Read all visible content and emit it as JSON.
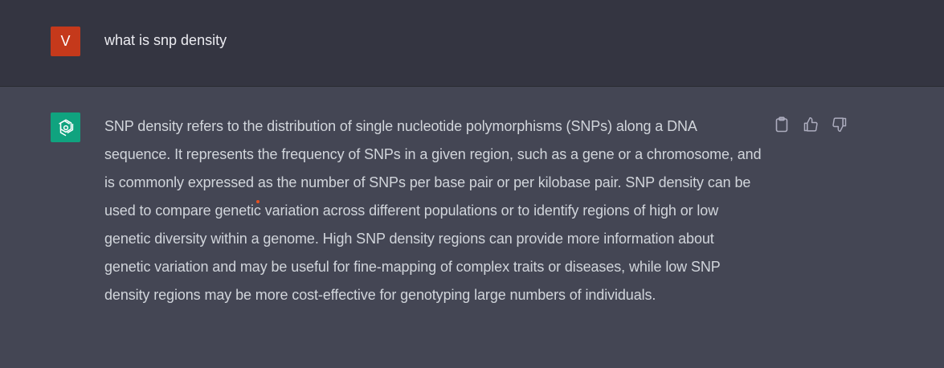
{
  "conversation": {
    "user": {
      "avatar_letter": "V",
      "avatar_color": "#c5391b",
      "message": "what is snp density"
    },
    "assistant": {
      "avatar_icon": "openai-logo-icon",
      "avatar_color": "#10a37f",
      "message": "SNP density refers to the distribution of single nucleotide polymorphisms (SNPs) along a DNA sequence. It represents the frequency of SNPs in a given region, such as a gene or a chromosome, and is commonly expressed as the number of SNPs per base pair or per kilobase pair. SNP density can be used to compare genetic variation across different populations or to identify regions of high or low genetic diversity within a genome. High SNP density regions can provide more information about genetic variation and may be useful for fine-mapping of complex traits or diseases, while low SNP density regions may be more cost-effective for genotyping large numbers of individuals.",
      "actions": [
        "clipboard-icon",
        "thumbs-up-icon",
        "thumbs-down-icon"
      ]
    }
  },
  "theme": {
    "user_row_bg": "#343541",
    "assistant_row_bg": "#444654",
    "text_color": "#d1d5db"
  }
}
